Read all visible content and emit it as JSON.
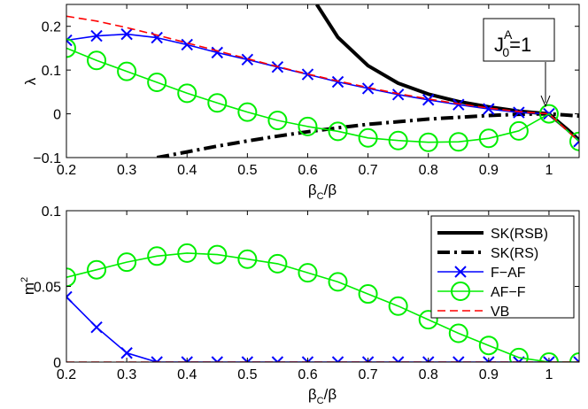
{
  "chart_data": [
    {
      "type": "line",
      "panel": "top",
      "xlabel": "βC/β",
      "ylabel": "λ",
      "xlim": [
        0.2,
        1.05
      ],
      "ylim": [
        -0.1,
        0.25
      ],
      "xticks": [
        0.2,
        0.3,
        0.4,
        0.5,
        0.6,
        0.7,
        0.8,
        0.9,
        1
      ],
      "yticks": [
        -0.1,
        0,
        0.1,
        0.2
      ],
      "xtick_labels": [
        "0.2",
        "0.3",
        "0.4",
        "0.5",
        "0.6",
        "0.7",
        "0.8",
        "0.9",
        "1"
      ],
      "ytick_labels": [
        "−0.1",
        "0",
        "0.1",
        "0.2"
      ],
      "annotation": {
        "base": "J",
        "sup": "A",
        "sub": "0",
        "rest": "=1",
        "arrow_to_x": 1,
        "arrow_to_y": 0
      },
      "series": [
        {
          "name": "SK(RSB)",
          "color": "#000000",
          "style": "solid-thick",
          "x": [
            0.615,
            0.65,
            0.7,
            0.75,
            0.8,
            0.85,
            0.9,
            0.95,
            1,
            1.03,
            1.05
          ],
          "y": [
            0.25,
            0.175,
            0.11,
            0.07,
            0.045,
            0.028,
            0.016,
            0.006,
            0,
            -0.035,
            -0.06
          ]
        },
        {
          "name": "SK(RS)",
          "color": "#000000",
          "style": "dashdot-thick",
          "x": [
            0.35,
            0.4,
            0.45,
            0.5,
            0.55,
            0.6,
            0.65,
            0.7,
            0.75,
            0.8,
            0.85,
            0.9,
            0.95,
            1,
            1.05
          ],
          "y": [
            -0.1,
            -0.087,
            -0.074,
            -0.062,
            -0.051,
            -0.041,
            -0.032,
            -0.024,
            -0.018,
            -0.012,
            -0.008,
            -0.004,
            -0.001,
            0,
            -0.005
          ]
        },
        {
          "name": "F-AF",
          "color": "#0000ff",
          "style": "solid",
          "marker": "x",
          "x": [
            0.2,
            0.25,
            0.3,
            0.35,
            0.4,
            0.45,
            0.5,
            0.55,
            0.6,
            0.65,
            0.7,
            0.75,
            0.8,
            0.85,
            0.9,
            0.95,
            1,
            1.05
          ],
          "y": [
            0.168,
            0.178,
            0.182,
            0.174,
            0.158,
            0.14,
            0.124,
            0.107,
            0.09,
            0.073,
            0.058,
            0.044,
            0.032,
            0.021,
            0.011,
            0.003,
            0,
            -0.063
          ]
        },
        {
          "name": "AF-F",
          "color": "#00ee00",
          "style": "solid",
          "marker": "o",
          "x": [
            0.2,
            0.25,
            0.3,
            0.35,
            0.4,
            0.45,
            0.5,
            0.55,
            0.6,
            0.65,
            0.7,
            0.75,
            0.8,
            0.85,
            0.9,
            0.95,
            1,
            1.05
          ],
          "y": [
            0.15,
            0.122,
            0.097,
            0.072,
            0.047,
            0.025,
            0.004,
            -0.015,
            -0.029,
            -0.04,
            -0.055,
            -0.061,
            -0.065,
            -0.064,
            -0.056,
            -0.039,
            0,
            -0.063
          ]
        },
        {
          "name": "VB",
          "color": "#ff0000",
          "style": "dashed",
          "x": [
            0.2,
            0.25,
            0.3,
            0.35,
            0.4,
            0.45,
            0.5,
            0.55,
            0.6,
            0.65,
            0.7,
            0.75,
            0.8,
            0.85,
            0.9,
            0.95,
            1,
            1.05
          ],
          "y": [
            0.223,
            0.212,
            0.197,
            0.18,
            0.162,
            0.144,
            0.126,
            0.108,
            0.091,
            0.075,
            0.06,
            0.046,
            0.034,
            0.023,
            0.013,
            0.005,
            0,
            -0.063
          ]
        }
      ]
    },
    {
      "type": "line",
      "panel": "bottom",
      "xlabel": "βC/β",
      "ylabel": "m2",
      "xlim": [
        0.2,
        1.05
      ],
      "ylim": [
        0,
        0.1
      ],
      "xticks": [
        0.2,
        0.3,
        0.4,
        0.5,
        0.6,
        0.7,
        0.8,
        0.9,
        1
      ],
      "yticks": [
        0,
        0.05,
        0.1
      ],
      "xtick_labels": [
        "0.2",
        "0.3",
        "0.4",
        "0.5",
        "0.6",
        "0.7",
        "0.8",
        "0.9",
        "1"
      ],
      "ytick_labels": [
        "0",
        "0.05",
        "0.1"
      ],
      "legend": {
        "position": "top-right",
        "entries": [
          "SK(RSB)",
          "SK(RS)",
          "F−AF",
          "AF−F",
          "VB"
        ]
      },
      "series": [
        {
          "name": "F-AF",
          "color": "#0000ff",
          "style": "solid",
          "marker": "x",
          "x": [
            0.2,
            0.25,
            0.3,
            0.35,
            0.4,
            0.45,
            0.5,
            0.55,
            0.6,
            0.65,
            0.7,
            0.75,
            0.8,
            0.85,
            0.9,
            0.95,
            1,
            1.05
          ],
          "y": [
            0.043,
            0.023,
            0.006,
            0,
            0,
            0,
            0,
            0,
            0,
            0,
            0,
            0,
            0,
            0,
            0,
            0,
            0,
            0
          ]
        },
        {
          "name": "AF-F",
          "color": "#00ee00",
          "style": "solid",
          "marker": "o",
          "x": [
            0.2,
            0.25,
            0.3,
            0.35,
            0.4,
            0.45,
            0.5,
            0.55,
            0.6,
            0.65,
            0.7,
            0.75,
            0.8,
            0.85,
            0.9,
            0.95,
            1,
            1.05
          ],
          "y": [
            0.056,
            0.061,
            0.066,
            0.07,
            0.072,
            0.071,
            0.068,
            0.065,
            0.059,
            0.053,
            0.045,
            0.037,
            0.028,
            0.019,
            0.011,
            0.003,
            0,
            0
          ]
        },
        {
          "name": "VB",
          "color": "#ff0000",
          "style": "dashed",
          "x": [
            0.2,
            1.05
          ],
          "y": [
            0,
            0
          ]
        }
      ]
    }
  ]
}
